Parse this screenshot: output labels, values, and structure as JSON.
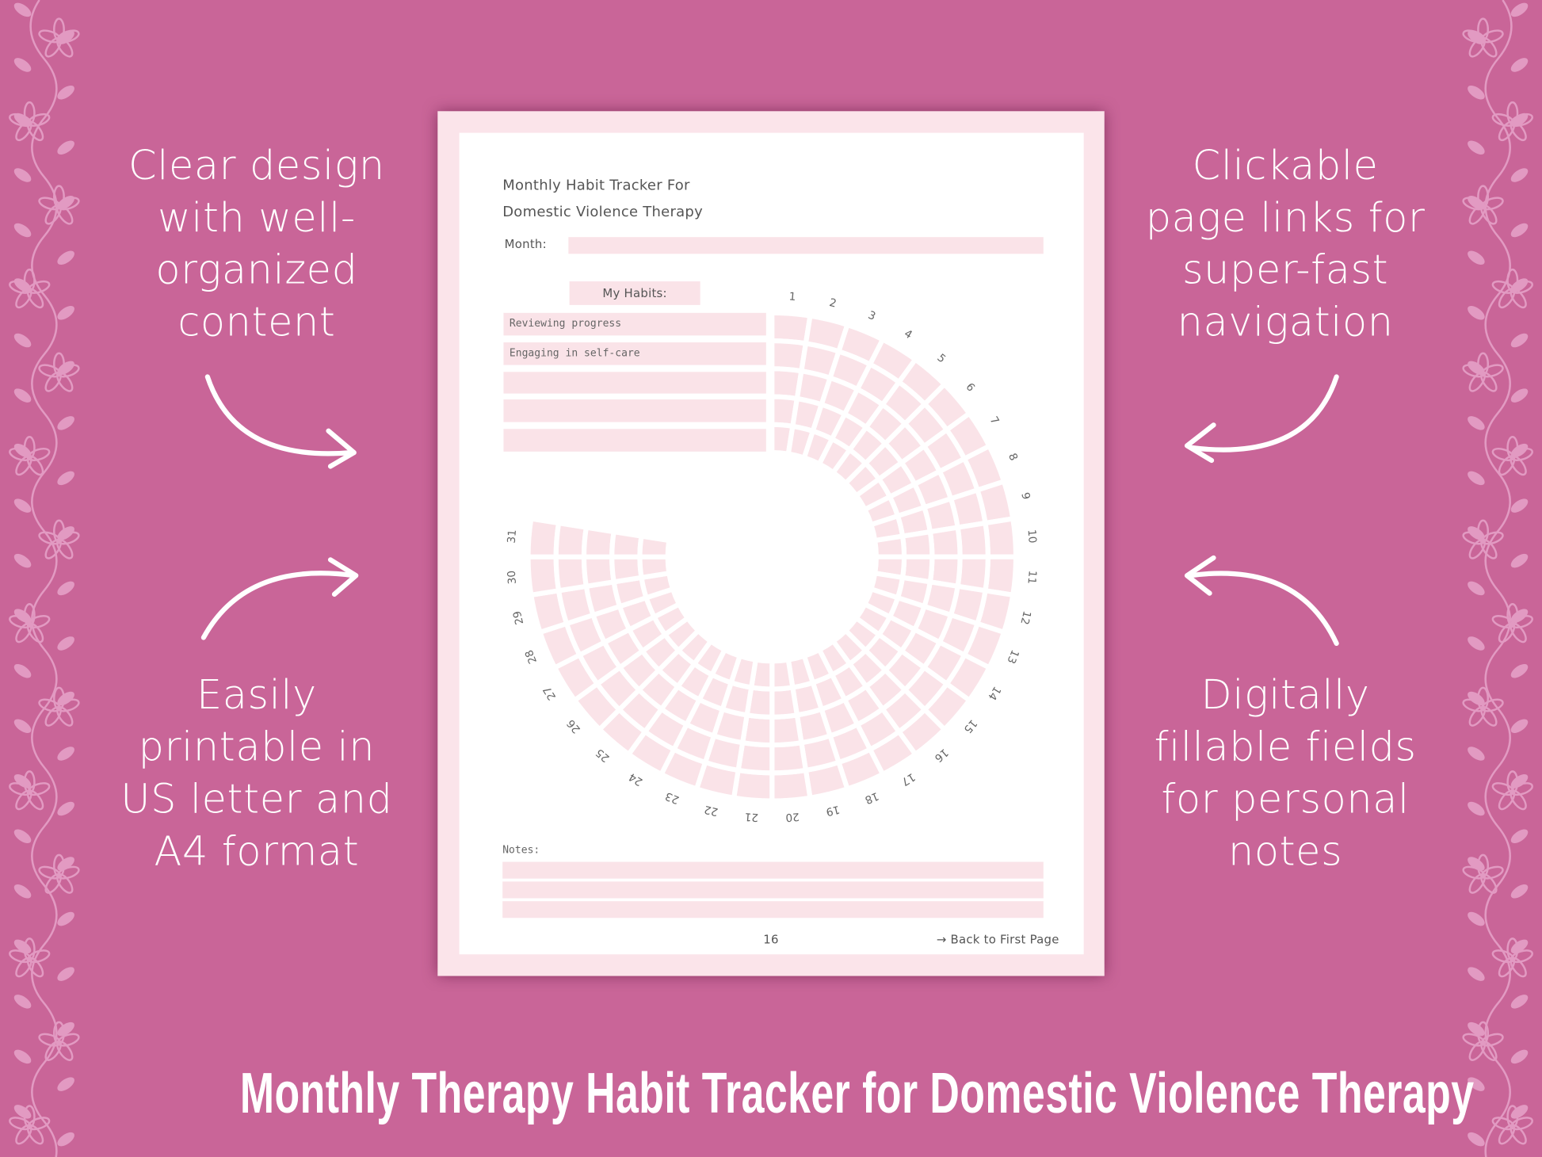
{
  "colors": {
    "background": "#c96598",
    "floral": "#e29ac2",
    "page_border": "#fbe4ea",
    "field": "#fae3e8",
    "text": "#ffffff"
  },
  "features": {
    "left_top": [
      "Clear design",
      "with well-",
      "organized",
      "content"
    ],
    "left_bottom": [
      "Easily",
      "printable in",
      "US letter and",
      "A4 format"
    ],
    "right_top": [
      "Clickable",
      "page links for",
      "super-fast",
      "navigation"
    ],
    "right_bottom": [
      "Digitally",
      "fillable fields",
      "for personal",
      "notes"
    ]
  },
  "arrows": [
    "arrow-right-icon",
    "arrow-right-icon",
    "arrow-left-icon",
    "arrow-left-icon"
  ],
  "page": {
    "title_line1": "Monthly Habit Tracker For",
    "title_line2": "Domestic Violence Therapy",
    "month_label": "Month:",
    "month_value": "",
    "habits_label": "My Habits:",
    "habits": [
      "Reviewing progress",
      "Engaging in self-care",
      "",
      "",
      ""
    ],
    "days": [
      "1",
      "2",
      "3",
      "4",
      "5",
      "6",
      "7",
      "8",
      "9",
      "10",
      "11",
      "12",
      "13",
      "14",
      "15",
      "16",
      "17",
      "18",
      "19",
      "20",
      "21",
      "22",
      "23",
      "24",
      "25",
      "26",
      "27",
      "28",
      "29",
      "30",
      "31"
    ],
    "notes_label": "Notes:",
    "notes": [
      "",
      "",
      ""
    ],
    "page_number": "16",
    "back_link": "→ Back to First Page"
  },
  "banner_title": "Monthly Therapy Habit Tracker for Domestic Violence Therapy"
}
